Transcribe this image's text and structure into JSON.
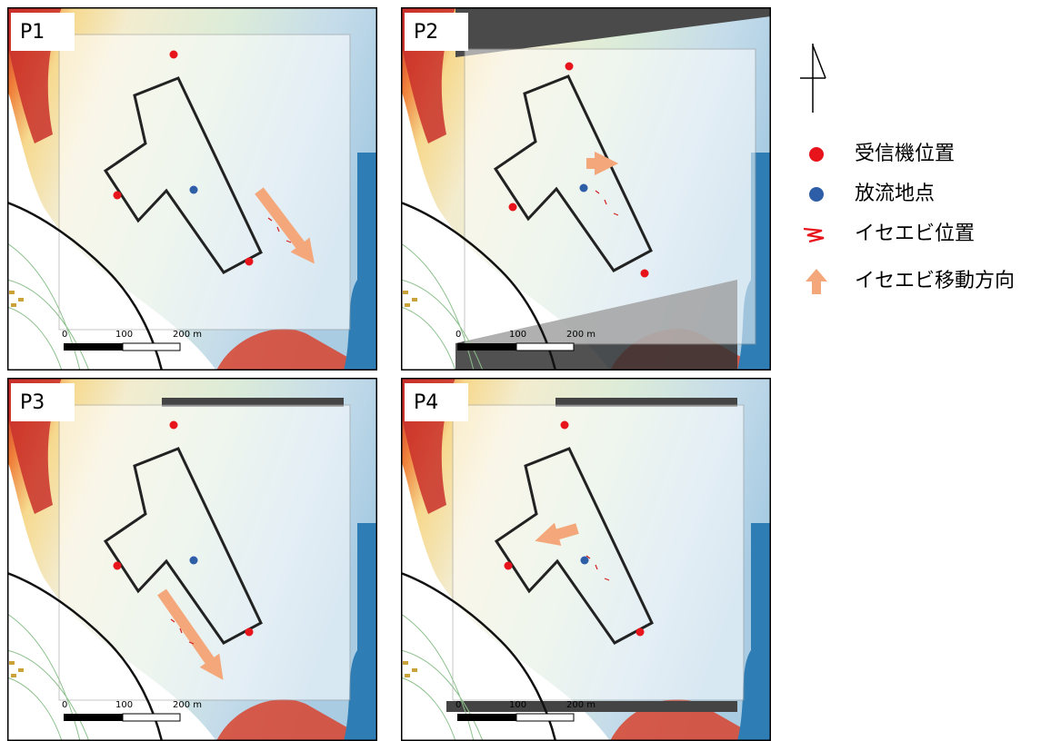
{
  "panels": [
    {
      "label": "P1",
      "scale": [
        "0",
        "100",
        "200 m"
      ]
    },
    {
      "label": "P2",
      "scale": [
        "0",
        "100",
        "200 m"
      ]
    },
    {
      "label": "P3",
      "scale": [
        "0",
        "100",
        "200 m"
      ]
    },
    {
      "label": "P4",
      "scale": [
        "0",
        "100",
        "200 m"
      ]
    }
  ],
  "legend": {
    "items": [
      "受信機位置",
      "放流地点",
      "イセエビ位置",
      "イセエビ移動方向"
    ]
  }
}
